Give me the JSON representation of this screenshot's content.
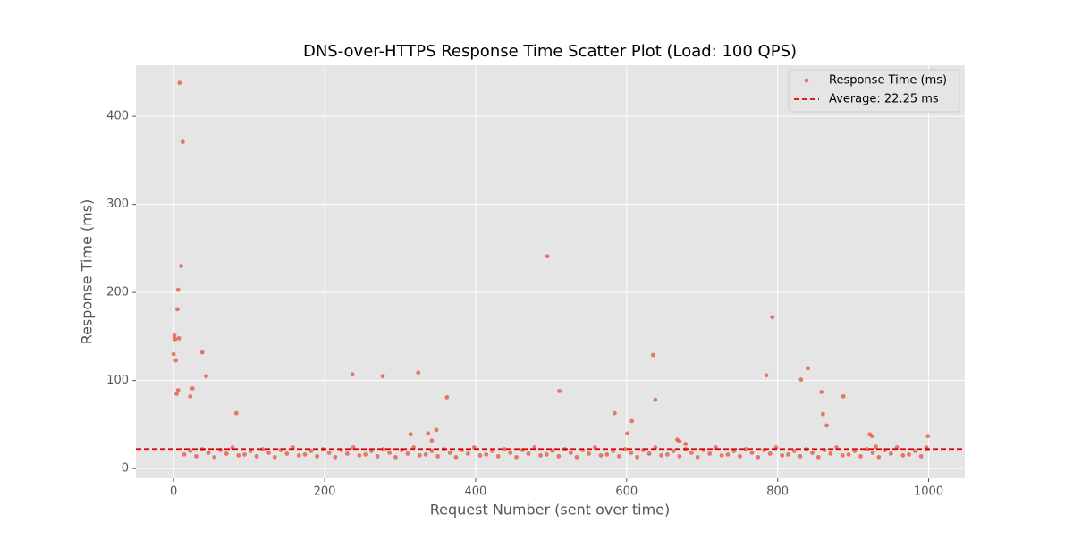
{
  "chart_data": {
    "type": "scatter",
    "title": "DNS-over-HTTPS Response Time Scatter Plot (Load: 100 QPS)",
    "x_label": "Request Number (sent over time)",
    "y_label": "Response Time (ms)",
    "xlim": [
      -49.9,
      1047.9
    ],
    "ylim": [
      -11,
      458
    ],
    "xticks": [
      0,
      200,
      400,
      600,
      800,
      1000
    ],
    "yticks": [
      0,
      100,
      200,
      300,
      400
    ],
    "grid": true,
    "legend": "upper right",
    "series": [
      {
        "name": "Response Time (ms)",
        "color": "#e24a33",
        "x": [
          14,
          22,
          30,
          38,
          46,
          54,
          62,
          70,
          78,
          86,
          94,
          102,
          110,
          118,
          126,
          134,
          142,
          150,
          158,
          166,
          174,
          182,
          190,
          198,
          206,
          214,
          222,
          230,
          238,
          246,
          254,
          262,
          270,
          278,
          286,
          294,
          302,
          310,
          318,
          326,
          334,
          342,
          350,
          358,
          366,
          374,
          382,
          390,
          398,
          406,
          414,
          422,
          430,
          438,
          446,
          454,
          462,
          470,
          478,
          486,
          494,
          502,
          510,
          518,
          526,
          534,
          542,
          550,
          558,
          566,
          574,
          582,
          590,
          598,
          606,
          614,
          622,
          630,
          638,
          646,
          654,
          662,
          670,
          678,
          686,
          694,
          702,
          710,
          718,
          726,
          734,
          742,
          750,
          758,
          766,
          774,
          782,
          790,
          798,
          806,
          814,
          822,
          830,
          838,
          846,
          854,
          862,
          870,
          878,
          886,
          894,
          902,
          910,
          918,
          926,
          934,
          942,
          950,
          958,
          966,
          974,
          982,
          990,
          998,
          0,
          1,
          2,
          3,
          4,
          5,
          6,
          6,
          7,
          8,
          10,
          12,
          22,
          25,
          38,
          43,
          83,
          237,
          277,
          314,
          324,
          337,
          342,
          348,
          362,
          495,
          511,
          584,
          601,
          607,
          635,
          638,
          667,
          670,
          678,
          785,
          793,
          831,
          840,
          858,
          860,
          865,
          887,
          922,
          925,
          930,
          997,
          999
        ],
        "y": [
          16,
          20,
          14,
          22,
          18,
          13,
          21,
          17,
          24,
          15,
          16,
          20,
          14,
          22,
          18,
          13,
          21,
          17,
          24,
          15,
          16,
          20,
          14,
          22,
          18,
          13,
          21,
          17,
          24,
          15,
          16,
          20,
          14,
          22,
          18,
          13,
          21,
          17,
          24,
          15,
          16,
          20,
          14,
          22,
          18,
          13,
          21,
          17,
          24,
          15,
          16,
          20,
          14,
          22,
          18,
          13,
          21,
          17,
          24,
          15,
          16,
          20,
          14,
          22,
          18,
          13,
          21,
          17,
          24,
          15,
          16,
          20,
          14,
          22,
          18,
          13,
          21,
          17,
          24,
          15,
          16,
          20,
          14,
          22,
          18,
          13,
          21,
          17,
          24,
          15,
          16,
          20,
          14,
          22,
          18,
          13,
          21,
          17,
          24,
          15,
          16,
          20,
          14,
          22,
          18,
          13,
          21,
          17,
          24,
          15,
          16,
          20,
          14,
          22,
          18,
          13,
          21,
          17,
          24,
          15,
          16,
          20,
          14,
          22,
          130,
          151,
          147,
          123,
          85,
          181,
          203,
          89,
          148,
          438,
          230,
          371,
          82,
          91,
          132,
          105,
          63,
          107,
          105,
          39,
          109,
          40,
          32,
          44,
          81,
          241,
          88,
          63,
          40,
          54,
          129,
          78,
          33,
          31,
          28,
          106,
          172,
          101,
          114,
          87,
          62,
          49,
          82,
          39,
          37,
          25,
          24,
          37
        ]
      }
    ],
    "average": {
      "label": "Average: 22.25 ms",
      "value": 22.25,
      "color": "#e00000"
    }
  }
}
